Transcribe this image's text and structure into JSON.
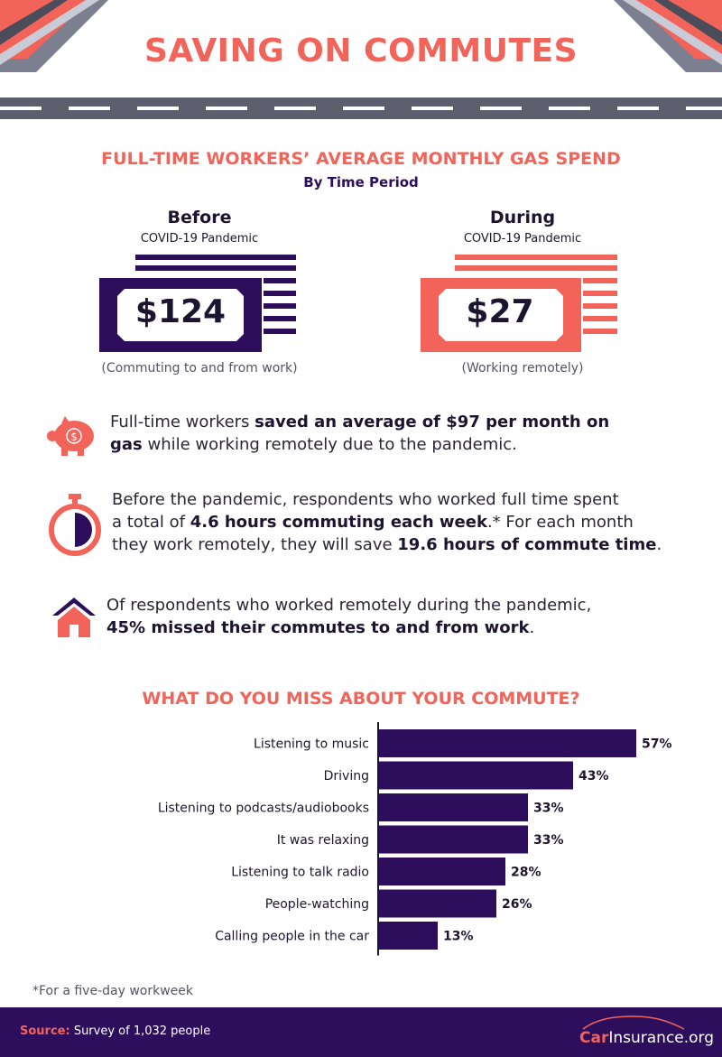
{
  "header": {
    "title": "SAVING ON COMMUTES"
  },
  "gas": {
    "title": "FULL-TIME WORKERS’ AVERAGE MONTHLY GAS SPEND",
    "subtitle": "By Time Period",
    "before": {
      "phase": "Before",
      "phase_sub": "COVID-19 Pandemic",
      "amount": "$124",
      "note": "(Commuting to and from work)"
    },
    "during": {
      "phase": "During",
      "phase_sub": "COVID-19 Pandemic",
      "amount": "$27",
      "note": "(Working remotely)"
    }
  },
  "facts": {
    "f1": {
      "pre": "Full-time workers ",
      "bold1": "saved an average of $97 per month on",
      "bold2": "gas",
      "post": " while working remotely due to the pandemic."
    },
    "f2": {
      "line1": "Before the pandemic, respondents who worked full time spent",
      "pre2": "a total of ",
      "bold2": "4.6 hours commuting each week",
      "post2": ".* For each month",
      "pre3": "they work remotely, they will save ",
      "bold3": "19.6 hours of commute time",
      "post3": "."
    },
    "f3": {
      "line1": "Of respondents who worked remotely during the pandemic,",
      "bold2": "45% missed their commutes to and from work",
      "post2": "."
    }
  },
  "chart_title": "WHAT DO YOU MISS ABOUT YOUR COMMUTE?",
  "chart_data": {
    "type": "bar",
    "orientation": "horizontal",
    "categories": [
      "Listening to music",
      "Driving",
      "Listening to podcasts/audiobooks",
      "It was relaxing",
      "Listening to talk radio",
      "People-watching",
      "Calling people in the car"
    ],
    "values": [
      57,
      43,
      33,
      33,
      28,
      26,
      13
    ],
    "value_labels": [
      "57%",
      "43%",
      "33%",
      "33%",
      "28%",
      "26%",
      "13%"
    ],
    "title": "WHAT DO YOU MISS ABOUT YOUR COMMUTE?",
    "xlim": [
      0,
      60
    ],
    "bar_color": "#2d0e5c",
    "grid": false,
    "legend": "none"
  },
  "footnote": "*For a five-day workweek",
  "footer": {
    "source_label": "Source:",
    "source_text": " Survey of 1,032 people",
    "brand_car": "Car",
    "brand_rest": "Insurance.org"
  },
  "colors": {
    "accent": "#f2645a",
    "primary": "#2d0e5c",
    "road": "#5d5f6f"
  },
  "icons": [
    "piggy-bank-icon",
    "stopwatch-icon",
    "house-icon",
    "car-outline-icon"
  ]
}
